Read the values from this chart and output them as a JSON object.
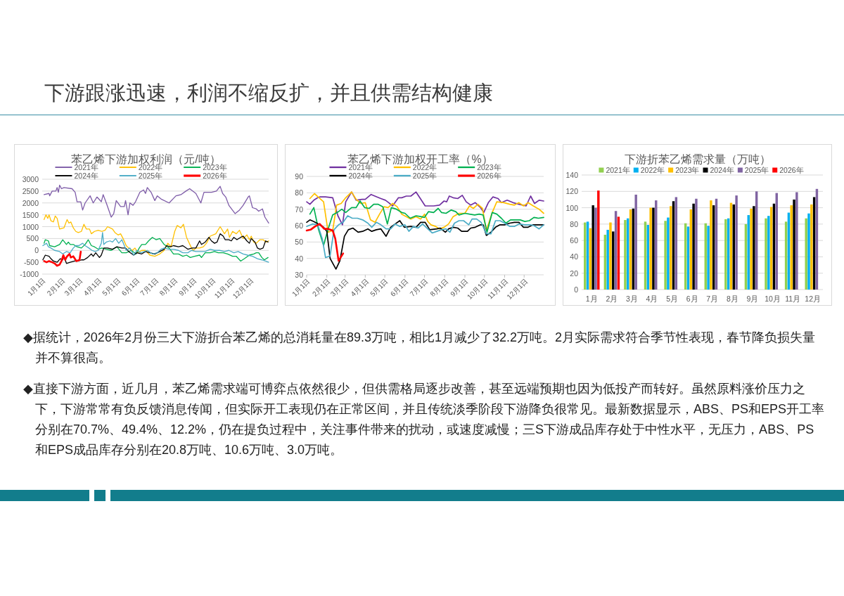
{
  "chart_data": [
    {
      "type": "other",
      "title": "下游跟涨迅速，利润不缩反扩，并且供需结构健康"
    },
    {
      "type": "line",
      "title": "苯乙烯下游加权利润（元/吨）",
      "legend": "top",
      "grid": "y",
      "ylim": [
        -1000,
        3000
      ],
      "yticks": [
        -1000,
        -500,
        0,
        500,
        1000,
        1500,
        2000,
        2500,
        3000
      ],
      "xlim": [
        "--01-01",
        "--12-31"
      ],
      "xticks": [
        {
          "value": "--01-01",
          "label": "1月1日"
        },
        {
          "value": "--02-01",
          "label": "2月1日"
        },
        {
          "value": "--03-01",
          "label": "3月1日"
        },
        {
          "value": "--04-01",
          "label": "4月1日"
        },
        {
          "value": "--05-01",
          "label": "5月1日"
        },
        {
          "value": "--06-01",
          "label": "6月1日"
        },
        {
          "value": "--07-01",
          "label": "7月1日"
        },
        {
          "value": "--08-01",
          "label": "8月1日"
        },
        {
          "value": "--09-01",
          "label": "9月1日"
        },
        {
          "value": "--10-01",
          "label": "10月1日"
        },
        {
          "value": "--11-01",
          "label": "11月1日"
        },
        {
          "value": "--12-01",
          "label": "12月1日"
        }
      ],
      "series": [
        {
          "name": "2021年",
          "color": "#7e5ca8",
          "x": [
            "--01-04",
            "--01-12",
            "--01-13",
            "--01-17",
            "--01-23",
            "--01-25",
            "--01-27",
            "--01-29",
            "--02-01",
            "--02-05",
            "--02-18",
            "--02-23",
            "--02-26",
            "--03-04",
            "--03-07",
            "--03-11",
            "--03-19",
            "--03-24",
            "--03-30",
            "--04-06",
            "--04-09",
            "--04-14",
            "--04-22",
            "--04-26",
            "--04-30",
            "--05-07",
            "--05-13",
            "--05-15",
            "--05-19",
            "--05-22",
            "--05-27",
            "--05-31",
            "--06-07",
            "--06-13",
            "--06-16",
            "--06-19",
            "--06-25",
            "--07-01",
            "--07-05",
            "--07-12",
            "--07-24",
            "--08-04",
            "--08-12",
            "--08-20",
            "--08-26",
            "--09-05",
            "--09-13",
            "--09-18",
            "--09-30",
            "--10-08",
            "--10-14",
            "--10-18",
            "--10-23",
            "--10-28",
            "--11-07",
            "--11-14",
            "--11-20",
            "--11-28",
            "--11-30",
            "--12-05",
            "--12-11",
            "--12-15",
            "--12-21",
            "--12-25",
            "--12-31"
          ],
          "values": [
            2350,
            2400,
            2300,
            2500,
            2500,
            2650,
            2450,
            2750,
            2600,
            2650,
            2600,
            2450,
            2050,
            2050,
            1700,
            2000,
            2300,
            2000,
            2250,
            2050,
            2350,
            2000,
            1400,
            1550,
            2100,
            1850,
            1850,
            2100,
            1500,
            2000,
            1900,
            2050,
            2450,
            2550,
            2400,
            2650,
            2450,
            2100,
            2300,
            2150,
            2000,
            2300,
            2350,
            2500,
            2600,
            2400,
            2000,
            2450,
            2450,
            2500,
            2700,
            2400,
            2250,
            1900,
            1550,
            1700,
            1900,
            2250,
            2300,
            1800,
            1750,
            1650,
            1750,
            1400,
            1150
          ]
        },
        {
          "name": "2022年",
          "color": "#ffc000",
          "x": [
            "--01-04",
            "--01-07",
            "--01-10",
            "--01-12",
            "--01-15",
            "--01-19",
            "--01-22",
            "--01-25",
            "--01-29",
            "--02-05",
            "--02-10",
            "--02-13",
            "--02-16",
            "--02-20",
            "--02-24",
            "--02-28",
            "--03-05",
            "--03-09",
            "--03-13",
            "--03-18",
            "--03-21",
            "--03-26",
            "--04-01",
            "--04-07",
            "--04-12",
            "--04-16",
            "--04-24",
            "--04-28",
            "--05-03",
            "--05-07",
            "--05-11",
            "--05-16",
            "--05-20",
            "--05-26",
            "--05-30",
            "--06-04",
            "--06-10",
            "--06-16",
            "--06-23",
            "--07-01",
            "--07-09",
            "--07-16",
            "--07-22",
            "--07-27",
            "--08-02",
            "--08-06",
            "--08-12",
            "--08-16",
            "--08-21",
            "--08-29",
            "--09-01",
            "--09-05",
            "--09-11",
            "--09-17",
            "--09-22",
            "--09-28",
            "--10-07",
            "--10-14",
            "--10-21",
            "--10-26",
            "--10-29",
            "--11-03",
            "--11-09",
            "--11-14",
            "--11-20",
            "--11-26",
            "--11-30",
            "--12-03",
            "--12-07",
            "--12-11",
            "--12-17",
            "--12-22",
            "--12-27",
            "--12-31"
          ],
          "values": [
            1300,
            1500,
            1350,
            1500,
            1250,
            1200,
            1450,
            1350,
            900,
            950,
            1300,
            1150,
            1200,
            950,
            800,
            750,
            800,
            1100,
            900,
            900,
            700,
            800,
            850,
            800,
            850,
            1000,
            900,
            750,
            650,
            700,
            500,
            200,
            100,
            0,
            100,
            -100,
            0,
            0,
            -200,
            -250,
            -150,
            0,
            300,
            150,
            800,
            1050,
            950,
            1100,
            550,
            100,
            0,
            100,
            100,
            150,
            300,
            600,
            700,
            1000,
            700,
            900,
            550,
            800,
            700,
            850,
            500,
            650,
            450,
            600,
            350,
            300,
            450,
            450,
            350,
            400
          ]
        },
        {
          "name": "2023年",
          "color": "#00b050",
          "x": [
            "--01-04",
            "--01-06",
            "--01-11",
            "--01-13",
            "--01-21",
            "--01-29",
            "--02-03",
            "--02-09",
            "--02-12",
            "--02-15",
            "--02-20",
            "--02-26",
            "--03-05",
            "--03-11",
            "--03-16",
            "--03-21",
            "--03-26",
            "--04-01",
            "--04-07",
            "--04-14",
            "--04-22",
            "--05-01",
            "--05-09",
            "--05-16",
            "--05-24",
            "--06-01",
            "--06-06",
            "--06-10",
            "--06-16",
            "--06-21",
            "--06-27",
            "--07-03",
            "--07-09",
            "--07-16",
            "--07-24",
            "--07-31",
            "--08-08",
            "--08-15",
            "--08-21",
            "--08-27",
            "--09-03",
            "--09-11",
            "--09-14",
            "--09-20",
            "--09-28",
            "--10-05",
            "--10-11",
            "--10-19",
            "--10-26",
            "--11-03",
            "--11-09",
            "--11-16",
            "--11-22",
            "--11-30",
            "--12-07",
            "--12-11",
            "--12-15",
            "--12-20",
            "--12-24",
            "--12-30"
          ],
          "values": [
            300,
            450,
            400,
            200,
            150,
            250,
            450,
            250,
            350,
            250,
            250,
            150,
            100,
            250,
            450,
            200,
            150,
            50,
            100,
            50,
            0,
            150,
            -100,
            -100,
            0,
            -150,
            100,
            250,
            250,
            400,
            550,
            450,
            500,
            250,
            100,
            -150,
            -150,
            -250,
            -200,
            -300,
            -250,
            -200,
            -300,
            -100,
            -100,
            -50,
            -100,
            -100,
            -150,
            -250,
            -250,
            -450,
            -350,
            -200,
            -150,
            -100,
            -100,
            -300,
            -400,
            -300
          ]
        },
        {
          "name": "2024年",
          "color": "#000000",
          "x": [
            "--01-02",
            "--01-06",
            "--01-12",
            "--01-15",
            "--01-19",
            "--01-25",
            "--01-30",
            "--02-03",
            "--02-05",
            "--02-09",
            "--02-15",
            "--02-22",
            "--02-28",
            "--03-05",
            "--03-09",
            "--03-15",
            "--03-21",
            "--03-24",
            "--03-28",
            "--04-03",
            "--04-06",
            "--04-10",
            "--04-16",
            "--04-24",
            "--05-01",
            "--05-09",
            "--05-15",
            "--05-20",
            "--05-28",
            "--06-02",
            "--06-10",
            "--06-16",
            "--06-23",
            "--07-01",
            "--07-09",
            "--07-16",
            "--07-20",
            "--07-26",
            "--07-31",
            "--08-08",
            "--08-15",
            "--08-23",
            "--08-30",
            "--09-05",
            "--09-11",
            "--09-14",
            "--09-20",
            "--09-26",
            "--09-30",
            "--10-05",
            "--10-09",
            "--10-14",
            "--10-19",
            "--10-22",
            "--10-28",
            "--11-01",
            "--11-05",
            "--11-10",
            "--11-16",
            "--11-20",
            "--11-26",
            "--11-30",
            "--12-03",
            "--12-09",
            "--12-13",
            "--12-17",
            "--12-22",
            "--12-26",
            "--12-30"
          ],
          "values": [
            -400,
            -200,
            -250,
            -350,
            -450,
            -500,
            -350,
            -400,
            -250,
            -550,
            -500,
            -450,
            -450,
            -400,
            -400,
            -300,
            -150,
            -250,
            -100,
            -300,
            -200,
            100,
            100,
            50,
            150,
            100,
            100,
            -50,
            -200,
            -100,
            -150,
            -50,
            -100,
            -150,
            -50,
            50,
            200,
            150,
            200,
            150,
            200,
            50,
            100,
            100,
            400,
            250,
            350,
            550,
            400,
            300,
            350,
            700,
            600,
            450,
            450,
            400,
            550,
            450,
            550,
            600,
            400,
            300,
            500,
            350,
            100,
            50,
            100,
            400,
            350
          ]
        },
        {
          "name": "2025年",
          "color": "#4bacc6",
          "x": [
            "--01-02",
            "--01-08",
            "--01-11",
            "--01-15",
            "--01-21",
            "--01-29",
            "--02-03",
            "--02-09",
            "--02-15",
            "--02-20",
            "--02-24",
            "--03-01",
            "--03-07",
            "--03-11",
            "--03-17",
            "--03-22",
            "--03-27",
            "--04-01",
            "--04-06",
            "--04-08",
            "--04-10",
            "--04-14",
            "--04-20",
            "--04-24",
            "--04-29",
            "--05-04",
            "--05-09",
            "--05-13",
            "--05-16",
            "--05-22",
            "--05-28",
            "--06-02",
            "--06-08",
            "--06-14",
            "--06-19",
            "--06-27",
            "--07-05",
            "--07-11",
            "--07-16",
            "--07-24",
            "--07-31",
            "--08-08",
            "--08-15",
            "--08-23",
            "--08-29",
            "--09-05",
            "--09-13",
            "--09-20",
            "--09-28",
            "--10-05",
            "--10-13",
            "--10-21",
            "--10-28",
            "--11-05",
            "--11-12",
            "--11-20",
            "--11-27",
            "--12-05",
            "--12-13",
            "--12-20",
            "--12-26",
            "--12-31"
          ],
          "values": [
            200,
            300,
            150,
            100,
            0,
            -50,
            -150,
            -50,
            -100,
            100,
            200,
            200,
            300,
            200,
            100,
            0,
            -50,
            0,
            300,
            750,
            250,
            350,
            400,
            350,
            500,
            300,
            450,
            200,
            0,
            100,
            -200,
            0,
            -100,
            -50,
            0,
            -150,
            -100,
            50,
            100,
            50,
            50,
            0,
            -100,
            -100,
            0,
            -50,
            -50,
            -50,
            50,
            0,
            0,
            -50,
            0,
            -100,
            -50,
            -150,
            -200,
            -250,
            -350,
            -400,
            -450,
            -500
          ]
        },
        {
          "name": "2026年",
          "color": "#ff0000",
          "x": [
            "--01-04",
            "--01-08",
            "--01-12",
            "--01-17",
            "--01-21",
            "--01-25",
            "--01-29",
            "--02-01",
            "--02-04",
            "--02-07",
            "--02-10",
            "--02-14",
            "--02-16",
            "--02-20",
            "--02-25",
            "--03-02",
            "--03-04"
          ],
          "values": [
            -450,
            -500,
            -450,
            -500,
            -550,
            -650,
            -600,
            -450,
            -200,
            -400,
            -250,
            -150,
            -300,
            -250,
            -450,
            -400,
            -50
          ]
        }
      ]
    },
    {
      "type": "line",
      "title": "苯乙烯下游加权开工率（%）",
      "legend": "top",
      "grid": "y",
      "ylim": [
        30,
        90
      ],
      "yticks": [
        30,
        40,
        50,
        60,
        70,
        80,
        90
      ],
      "xlim": [
        "--01-01",
        "--12-31"
      ],
      "xticks": [
        {
          "value": "--01-01",
          "label": "1月1日"
        },
        {
          "value": "--02-01",
          "label": "2月1日"
        },
        {
          "value": "--03-01",
          "label": "3月1日"
        },
        {
          "value": "--04-01",
          "label": "4月1日"
        },
        {
          "value": "--05-01",
          "label": "5月1日"
        },
        {
          "value": "--06-01",
          "label": "6月1日"
        },
        {
          "value": "--07-01",
          "label": "7月1日"
        },
        {
          "value": "--08-01",
          "label": "8月1日"
        },
        {
          "value": "--09-01",
          "label": "9月1日"
        },
        {
          "value": "--10-01",
          "label": "10月1日"
        },
        {
          "value": "--11-01",
          "label": "11月1日"
        },
        {
          "value": "--12-01",
          "label": "12月1日"
        }
      ],
      "series": [
        {
          "name": "2021年",
          "color": "#7030a0",
          "x": [
            "--01-01",
            "--01-06",
            "--01-12",
            "--01-18",
            "--01-21",
            "--01-30",
            "--02-10",
            "--02-18",
            "--02-25",
            "--03-02",
            "--03-11",
            "--03-18",
            "--03-27",
            "--04-01",
            "--04-10",
            "--04-19",
            "--04-25",
            "--05-02",
            "--05-07",
            "--05-13",
            "--05-22",
            "--05-27",
            "--06-03",
            "--06-10",
            "--06-18",
            "--06-23",
            "--07-02",
            "--07-15",
            "--07-24",
            "--07-31",
            "--08-04",
            "--08-08",
            "--08-14",
            "--08-21",
            "--08-28",
            "--09-03",
            "--09-10",
            "--09-17",
            "--09-25",
            "--09-30",
            "--10-07",
            "--10-14",
            "--10-22",
            "--10-27",
            "--11-05",
            "--11-14",
            "--11-23",
            "--12-04",
            "--12-11",
            "--12-17",
            "--12-24",
            "--12-31"
          ],
          "values": [
            74.5,
            73,
            75.5,
            77,
            77.5,
            77.5,
            77,
            66,
            60.5,
            74.5,
            80.5,
            75.5,
            76,
            76,
            79,
            77.5,
            76.5,
            75.5,
            74,
            72,
            77,
            77,
            78,
            78,
            80.5,
            77.5,
            72,
            72,
            72.5,
            75,
            74.5,
            78,
            77,
            76.5,
            78.5,
            74.5,
            72.5,
            74,
            71,
            68,
            74,
            77.5,
            76.5,
            74,
            75.5,
            74,
            73,
            72,
            78,
            73.5,
            75.5,
            75
          ]
        },
        {
          "name": "2022年",
          "color": "#ffc000",
          "x": [
            "--01-06",
            "--01-13",
            "--01-20",
            "--01-27",
            "--02-03",
            "--02-10",
            "--02-16",
            "--02-23",
            "--03-02",
            "--03-11",
            "--03-18",
            "--03-25",
            "--04-01",
            "--04-09",
            "--04-16",
            "--04-23",
            "--04-30",
            "--05-06",
            "--05-13",
            "--05-20",
            "--05-27",
            "--06-03",
            "--06-10",
            "--06-18",
            "--06-25",
            "--07-01",
            "--07-06",
            "--07-11",
            "--07-18",
            "--07-24",
            "--07-31",
            "--08-07",
            "--08-14",
            "--08-23",
            "--09-01",
            "--09-08",
            "--09-14",
            "--09-21",
            "--09-28",
            "--10-04",
            "--10-13",
            "--10-20",
            "--10-31",
            "--11-09",
            "--11-16",
            "--11-23",
            "--11-30",
            "--12-07",
            "--12-15",
            "--12-24",
            "--12-31"
          ],
          "values": [
            76.5,
            79.5,
            77,
            74.5,
            56,
            57,
            72.5,
            73.5,
            77,
            80.5,
            76,
            73.5,
            74,
            63.5,
            62,
            67,
            71.5,
            71,
            73.5,
            71.5,
            67,
            65.5,
            64,
            65.5,
            64,
            67,
            62.5,
            60.5,
            59.5,
            58,
            59,
            61,
            65.5,
            67.5,
            67.5,
            72,
            70.5,
            73,
            70.5,
            57,
            68,
            74.5,
            74,
            73,
            72.5,
            74,
            72,
            74,
            72,
            70,
            67.5
          ]
        },
        {
          "name": "2023年",
          "color": "#00b050",
          "x": [
            "--01-06",
            "--01-12",
            "--01-19",
            "--01-27",
            "--02-03",
            "--02-10",
            "--02-17",
            "--02-24",
            "--03-02",
            "--03-11",
            "--03-18",
            "--03-24",
            "--03-31",
            "--04-07",
            "--04-14",
            "--04-21",
            "--04-28",
            "--05-05",
            "--05-11",
            "--05-19",
            "--05-27",
            "--06-01",
            "--06-09",
            "--06-18",
            "--06-25",
            "--07-01",
            "--07-07",
            "--07-15",
            "--07-22",
            "--07-27",
            "--08-03",
            "--08-11",
            "--08-18",
            "--08-23",
            "--09-01",
            "--09-08",
            "--09-16",
            "--09-23",
            "--09-29",
            "--10-05",
            "--10-13",
            "--10-20",
            "--10-27",
            "--11-03",
            "--11-10",
            "--11-18",
            "--11-25",
            "--12-02",
            "--12-09",
            "--12-16",
            "--12-23",
            "--12-31"
          ],
          "values": [
            67,
            71,
            58,
            48,
            58,
            66.5,
            68,
            70,
            68,
            71,
            71,
            75,
            71,
            70.5,
            73,
            73,
            71.5,
            61,
            71,
            70,
            68,
            67.5,
            64.5,
            66,
            65.5,
            65,
            68.5,
            68,
            70.5,
            68,
            67.5,
            69.5,
            68.5,
            66.5,
            67.5,
            67,
            66.5,
            67,
            66.5,
            56,
            68,
            67,
            64.5,
            61.5,
            63.5,
            63.5,
            63.5,
            62.5,
            63,
            65,
            64.5,
            65
          ]
        },
        {
          "name": "2024年",
          "color": "#000000",
          "x": [
            "--01-01",
            "--01-06",
            "--01-12",
            "--01-19",
            "--01-27",
            "--02-01",
            "--02-06",
            "--02-15",
            "--02-21",
            "--02-28",
            "--03-06",
            "--03-13",
            "--03-21",
            "--03-28",
            "--04-05",
            "--04-11",
            "--04-18",
            "--04-25",
            "--05-03",
            "--05-10",
            "--05-17",
            "--05-24",
            "--05-31",
            "--06-10",
            "--06-18",
            "--06-25",
            "--07-02",
            "--07-09",
            "--07-20",
            "--07-25",
            "--08-02",
            "--08-07",
            "--08-14",
            "--08-21",
            "--08-27",
            "--09-05",
            "--09-10",
            "--09-17",
            "--09-25",
            "--09-29",
            "--10-04",
            "--10-11",
            "--10-18",
            "--10-25",
            "--11-01",
            "--11-09",
            "--11-16",
            "--11-23",
            "--11-30",
            "--12-07",
            "--12-15",
            "--12-24",
            "--12-31"
          ],
          "values": [
            62,
            63.5,
            62.5,
            61,
            59,
            56.5,
            40,
            33.5,
            38.5,
            53.5,
            57.5,
            58.5,
            56,
            56.5,
            58,
            56.5,
            57.5,
            58,
            53.5,
            59,
            61,
            63,
            59,
            59.5,
            59,
            62,
            62,
            57.5,
            58,
            58.5,
            56,
            58,
            59,
            58.5,
            56.5,
            56.5,
            58.5,
            59,
            60.5,
            60.5,
            54,
            56,
            59,
            60.5,
            60.5,
            61.5,
            62,
            62,
            59,
            59,
            60.5,
            60.5,
            60.5
          ]
        },
        {
          "name": "2025年",
          "color": "#4bacc6",
          "x": [
            "--01-01",
            "--01-10",
            "--01-18",
            "--01-25",
            "--01-30",
            "--02-06",
            "--02-12",
            "--02-19",
            "--02-26",
            "--03-05",
            "--03-12",
            "--03-20",
            "--03-28",
            "--04-05",
            "--04-11",
            "--04-18",
            "--04-25",
            "--05-03",
            "--05-10",
            "--05-17",
            "--05-24",
            "--06-01",
            "--06-07",
            "--06-14",
            "--06-21",
            "--06-28",
            "--07-06",
            "--07-13",
            "--07-20",
            "--07-27",
            "--08-03",
            "--08-09",
            "--08-16",
            "--08-23",
            "--08-30",
            "--09-07",
            "--09-12",
            "--09-19",
            "--09-26",
            "--10-04",
            "--10-11",
            "--10-18",
            "--10-25",
            "--11-01",
            "--11-09",
            "--11-16",
            "--11-23",
            "--12-02",
            "--12-11",
            "--12-16",
            "--12-24",
            "--12-31"
          ],
          "values": [
            59.5,
            61,
            60.5,
            52,
            40.5,
            41.5,
            57.5,
            60.5,
            62,
            66,
            64.5,
            64.5,
            63.5,
            61.5,
            59,
            62,
            60.5,
            58,
            58,
            61,
            59.5,
            60.5,
            56.5,
            59.5,
            58.5,
            61,
            58,
            55.5,
            56.5,
            57.5,
            58,
            56,
            61.5,
            63,
            63,
            60.5,
            64,
            64,
            62,
            55,
            55,
            63,
            63,
            61.5,
            59.5,
            59.5,
            61,
            60.5,
            60.5,
            60,
            58,
            60.5
          ]
        },
        {
          "name": "2026年",
          "color": "#ff0000",
          "x": [
            "--01-01",
            "--01-07",
            "--01-14",
            "--01-21",
            "--01-28",
            "--02-03",
            "--02-10",
            "--02-14",
            "--02-19",
            "--02-26"
          ],
          "values": [
            57,
            57.5,
            59.5,
            61,
            58,
            58,
            57,
            52,
            38.5,
            43
          ]
        }
      ]
    },
    {
      "type": "bar",
      "title": "下游折苯乙烯需求量（万吨）",
      "legend": "top",
      "grid": "y",
      "ylim": [
        0,
        140
      ],
      "yticks": [
        0,
        20,
        40,
        60,
        80,
        100,
        120,
        140
      ],
      "categories": [
        "1月",
        "2月",
        "3月",
        "4月",
        "5月",
        "6月",
        "7月",
        "8月",
        "9月",
        "10月",
        "11月",
        "12月"
      ],
      "series": [
        {
          "name": "2021年",
          "color": "#92d050",
          "values": [
            82,
            67,
            85,
            83,
            84,
            81,
            81,
            86,
            80,
            87,
            83,
            87
          ]
        },
        {
          "name": "2022年",
          "color": "#00b0f0",
          "values": [
            83,
            73,
            87,
            79,
            88,
            77,
            78,
            87,
            91,
            90,
            94,
            93
          ]
        },
        {
          "name": "2023年",
          "color": "#ffc000",
          "values": [
            75,
            82,
            98,
            100,
            102,
            98,
            109,
            106,
            99,
            101,
            103,
            104
          ]
        },
        {
          "name": "2024年",
          "color": "#000000",
          "values": [
            103,
            71,
            99,
            100,
            108,
            105,
            103,
            104,
            102,
            105,
            110,
            113
          ]
        },
        {
          "name": "2025年",
          "color": "#8064a2",
          "values": [
            100,
            96,
            116,
            109,
            113,
            111,
            111,
            115,
            120,
            118,
            119,
            123
          ]
        },
        {
          "name": "2026年",
          "color": "#ff0000",
          "values": [
            121,
            89,
            null,
            null,
            null,
            null,
            null,
            null,
            null,
            null,
            null,
            null
          ]
        }
      ]
    },
    {
      "type": "other",
      "annotations": [
        "◆据统计，2026年2月份三大下游折合苯乙烯的总消耗量在89.3万吨，相比1月减少了32.2万吨。2月实际需求符合季节性表现，春节降负损失量并不算很高。",
        "◆直接下游方面，近几月，苯乙烯需求端可博弈点依然很少，但供需格局逐步改善，甚至远端预期也因为低投产而转好。虽然原料涨价压力之下，下游常常有负反馈消息传闻，但实际开工表现仍在正常区间，并且传统淡季阶段下游降负很常见。最新数据显示，ABS、PS和EPS开工率分别在70.7%、49.4%、12.2%，仍在提负过程中，关注事件带来的扰动，或速度减慢；三S下游成品库存处于中性水平，无压力，ABS、PS和EPS成品库存分别在20.8万吨、10.6万吨、3.0万吨。"
      ]
    }
  ]
}
